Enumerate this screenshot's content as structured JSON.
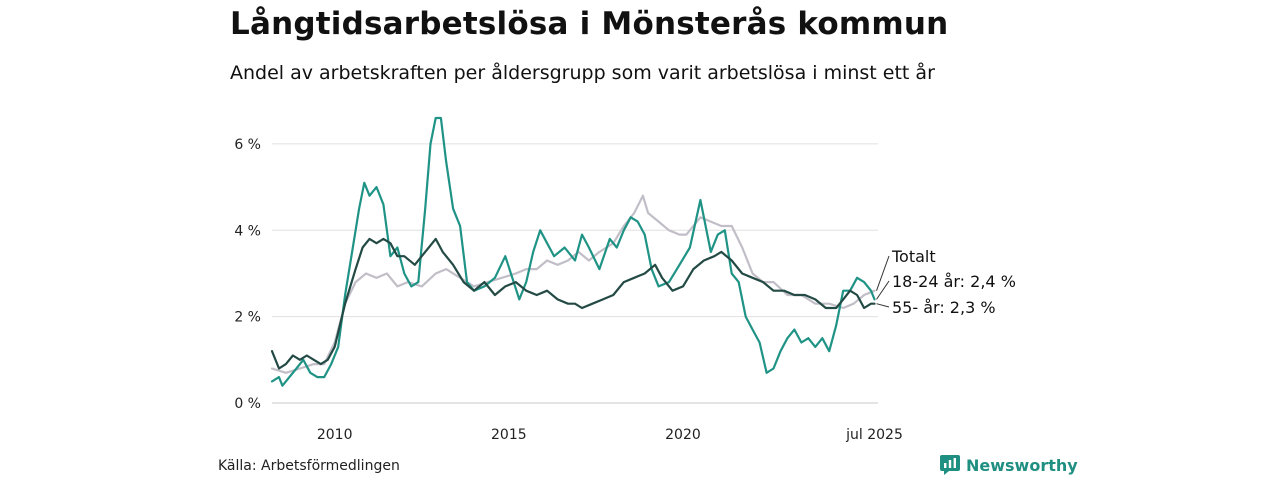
{
  "title": "Långtidsarbetslösa i Mönsterås kommun",
  "subtitle": "Andel av arbetskraften per åldersgrupp som varit arbetslösa i minst ett år",
  "source": "Källa: Arbetsförmedlingen",
  "brand": {
    "name": "Newsworthy",
    "icon": "newsworthy-logo-icon",
    "color": "#1f8f82"
  },
  "chart_data": {
    "type": "line",
    "xlim": [
      2008.2,
      2025.6
    ],
    "ylim": [
      0,
      6.6
    ],
    "grid": true,
    "x_ticks": [
      {
        "value": 2010,
        "label": "2010"
      },
      {
        "value": 2015,
        "label": "2015"
      },
      {
        "value": 2020,
        "label": "2020"
      },
      {
        "value": 2025.5,
        "label": "jul 2025"
      }
    ],
    "y_ticks": [
      {
        "value": 0,
        "label": "0 %"
      },
      {
        "value": 2,
        "label": "2 %"
      },
      {
        "value": 4,
        "label": "4 %"
      },
      {
        "value": 6,
        "label": "6 %"
      }
    ],
    "series": [
      {
        "name": "Totalt",
        "color": "#c2bec8",
        "end_label": "Totalt",
        "points": [
          [
            2008.2,
            0.8
          ],
          [
            2008.6,
            0.7
          ],
          [
            2009.0,
            0.8
          ],
          [
            2009.4,
            0.9
          ],
          [
            2009.7,
            0.9
          ],
          [
            2010.0,
            1.4
          ],
          [
            2010.3,
            2.3
          ],
          [
            2010.6,
            2.8
          ],
          [
            2010.9,
            3.0
          ],
          [
            2011.2,
            2.9
          ],
          [
            2011.5,
            3.0
          ],
          [
            2011.8,
            2.7
          ],
          [
            2012.1,
            2.8
          ],
          [
            2012.5,
            2.7
          ],
          [
            2012.9,
            3.0
          ],
          [
            2013.2,
            3.1
          ],
          [
            2013.6,
            2.9
          ],
          [
            2014.0,
            2.7
          ],
          [
            2014.4,
            2.8
          ],
          [
            2014.8,
            2.9
          ],
          [
            2015.2,
            3.0
          ],
          [
            2015.5,
            3.1
          ],
          [
            2015.8,
            3.1
          ],
          [
            2016.1,
            3.3
          ],
          [
            2016.4,
            3.2
          ],
          [
            2016.7,
            3.3
          ],
          [
            2017.0,
            3.5
          ],
          [
            2017.3,
            3.3
          ],
          [
            2017.6,
            3.5
          ],
          [
            2018.0,
            3.7
          ],
          [
            2018.3,
            4.1
          ],
          [
            2018.6,
            4.4
          ],
          [
            2018.85,
            4.8
          ],
          [
            2019.0,
            4.4
          ],
          [
            2019.3,
            4.2
          ],
          [
            2019.6,
            4.0
          ],
          [
            2019.9,
            3.9
          ],
          [
            2020.1,
            3.9
          ],
          [
            2020.5,
            4.3
          ],
          [
            2020.8,
            4.2
          ],
          [
            2021.1,
            4.1
          ],
          [
            2021.4,
            4.1
          ],
          [
            2021.7,
            3.6
          ],
          [
            2022.0,
            3.0
          ],
          [
            2022.3,
            2.8
          ],
          [
            2022.6,
            2.8
          ],
          [
            2023.0,
            2.5
          ],
          [
            2023.4,
            2.5
          ],
          [
            2023.8,
            2.3
          ],
          [
            2024.2,
            2.3
          ],
          [
            2024.6,
            2.2
          ],
          [
            2024.9,
            2.3
          ],
          [
            2025.2,
            2.5
          ],
          [
            2025.5,
            2.6
          ]
        ]
      },
      {
        "name": "18-24 år",
        "color": "#1f9385",
        "end_label": "18-24 år: 2,4 %",
        "points": [
          [
            2008.2,
            0.5
          ],
          [
            2008.4,
            0.6
          ],
          [
            2008.5,
            0.4
          ],
          [
            2008.7,
            0.6
          ],
          [
            2008.9,
            0.8
          ],
          [
            2009.1,
            1.0
          ],
          [
            2009.3,
            0.7
          ],
          [
            2009.5,
            0.6
          ],
          [
            2009.7,
            0.6
          ],
          [
            2009.9,
            0.9
          ],
          [
            2010.1,
            1.3
          ],
          [
            2010.3,
            2.5
          ],
          [
            2010.5,
            3.5
          ],
          [
            2010.7,
            4.5
          ],
          [
            2010.85,
            5.1
          ],
          [
            2011.0,
            4.8
          ],
          [
            2011.2,
            5.0
          ],
          [
            2011.4,
            4.6
          ],
          [
            2011.6,
            3.4
          ],
          [
            2011.8,
            3.6
          ],
          [
            2012.0,
            3.0
          ],
          [
            2012.2,
            2.7
          ],
          [
            2012.4,
            2.8
          ],
          [
            2012.6,
            4.5
          ],
          [
            2012.75,
            6.0
          ],
          [
            2012.9,
            6.6
          ],
          [
            2013.05,
            6.6
          ],
          [
            2013.2,
            5.6
          ],
          [
            2013.4,
            4.5
          ],
          [
            2013.6,
            4.1
          ],
          [
            2013.8,
            2.8
          ],
          [
            2014.0,
            2.6
          ],
          [
            2014.3,
            2.7
          ],
          [
            2014.6,
            2.9
          ],
          [
            2014.9,
            3.4
          ],
          [
            2015.1,
            2.9
          ],
          [
            2015.3,
            2.4
          ],
          [
            2015.5,
            2.8
          ],
          [
            2015.7,
            3.5
          ],
          [
            2015.9,
            4.0
          ],
          [
            2016.1,
            3.7
          ],
          [
            2016.3,
            3.4
          ],
          [
            2016.6,
            3.6
          ],
          [
            2016.9,
            3.3
          ],
          [
            2017.1,
            3.9
          ],
          [
            2017.3,
            3.6
          ],
          [
            2017.6,
            3.1
          ],
          [
            2017.9,
            3.8
          ],
          [
            2018.1,
            3.6
          ],
          [
            2018.3,
            4.0
          ],
          [
            2018.5,
            4.3
          ],
          [
            2018.7,
            4.2
          ],
          [
            2018.9,
            3.9
          ],
          [
            2019.1,
            3.1
          ],
          [
            2019.3,
            2.7
          ],
          [
            2019.6,
            2.8
          ],
          [
            2019.9,
            3.2
          ],
          [
            2020.2,
            3.6
          ],
          [
            2020.5,
            4.7
          ],
          [
            2020.8,
            3.5
          ],
          [
            2021.0,
            3.9
          ],
          [
            2021.2,
            4.0
          ],
          [
            2021.4,
            3.0
          ],
          [
            2021.6,
            2.8
          ],
          [
            2021.8,
            2.0
          ],
          [
            2022.0,
            1.7
          ],
          [
            2022.2,
            1.4
          ],
          [
            2022.4,
            0.7
          ],
          [
            2022.6,
            0.8
          ],
          [
            2022.8,
            1.2
          ],
          [
            2023.0,
            1.5
          ],
          [
            2023.2,
            1.7
          ],
          [
            2023.4,
            1.4
          ],
          [
            2023.6,
            1.5
          ],
          [
            2023.8,
            1.3
          ],
          [
            2024.0,
            1.5
          ],
          [
            2024.2,
            1.2
          ],
          [
            2024.4,
            1.8
          ],
          [
            2024.6,
            2.6
          ],
          [
            2024.8,
            2.6
          ],
          [
            2025.0,
            2.9
          ],
          [
            2025.2,
            2.8
          ],
          [
            2025.4,
            2.6
          ],
          [
            2025.5,
            2.4
          ]
        ]
      },
      {
        "name": "55- år",
        "color": "#234a44",
        "end_label": "55- år: 2,3 %",
        "points": [
          [
            2008.2,
            1.2
          ],
          [
            2008.4,
            0.8
          ],
          [
            2008.6,
            0.9
          ],
          [
            2008.8,
            1.1
          ],
          [
            2009.0,
            1.0
          ],
          [
            2009.2,
            1.1
          ],
          [
            2009.4,
            1.0
          ],
          [
            2009.6,
            0.9
          ],
          [
            2009.8,
            1.0
          ],
          [
            2010.0,
            1.3
          ],
          [
            2010.3,
            2.3
          ],
          [
            2010.6,
            3.1
          ],
          [
            2010.8,
            3.6
          ],
          [
            2011.0,
            3.8
          ],
          [
            2011.2,
            3.7
          ],
          [
            2011.4,
            3.8
          ],
          [
            2011.6,
            3.7
          ],
          [
            2011.8,
            3.4
          ],
          [
            2012.0,
            3.4
          ],
          [
            2012.3,
            3.2
          ],
          [
            2012.6,
            3.5
          ],
          [
            2012.9,
            3.8
          ],
          [
            2013.1,
            3.5
          ],
          [
            2013.4,
            3.2
          ],
          [
            2013.7,
            2.8
          ],
          [
            2014.0,
            2.6
          ],
          [
            2014.3,
            2.8
          ],
          [
            2014.6,
            2.5
          ],
          [
            2014.9,
            2.7
          ],
          [
            2015.2,
            2.8
          ],
          [
            2015.5,
            2.6
          ],
          [
            2015.8,
            2.5
          ],
          [
            2016.1,
            2.6
          ],
          [
            2016.4,
            2.4
          ],
          [
            2016.7,
            2.3
          ],
          [
            2016.9,
            2.3
          ],
          [
            2017.1,
            2.2
          ],
          [
            2017.4,
            2.3
          ],
          [
            2017.7,
            2.4
          ],
          [
            2018.0,
            2.5
          ],
          [
            2018.3,
            2.8
          ],
          [
            2018.6,
            2.9
          ],
          [
            2018.9,
            3.0
          ],
          [
            2019.2,
            3.2
          ],
          [
            2019.4,
            2.9
          ],
          [
            2019.7,
            2.6
          ],
          [
            2020.0,
            2.7
          ],
          [
            2020.3,
            3.1
          ],
          [
            2020.6,
            3.3
          ],
          [
            2020.9,
            3.4
          ],
          [
            2021.1,
            3.5
          ],
          [
            2021.4,
            3.3
          ],
          [
            2021.7,
            3.0
          ],
          [
            2022.0,
            2.9
          ],
          [
            2022.3,
            2.8
          ],
          [
            2022.6,
            2.6
          ],
          [
            2022.9,
            2.6
          ],
          [
            2023.2,
            2.5
          ],
          [
            2023.5,
            2.5
          ],
          [
            2023.8,
            2.4
          ],
          [
            2024.1,
            2.2
          ],
          [
            2024.4,
            2.2
          ],
          [
            2024.6,
            2.4
          ],
          [
            2024.8,
            2.6
          ],
          [
            2025.0,
            2.5
          ],
          [
            2025.2,
            2.2
          ],
          [
            2025.4,
            2.3
          ],
          [
            2025.5,
            2.3
          ]
        ]
      }
    ]
  }
}
